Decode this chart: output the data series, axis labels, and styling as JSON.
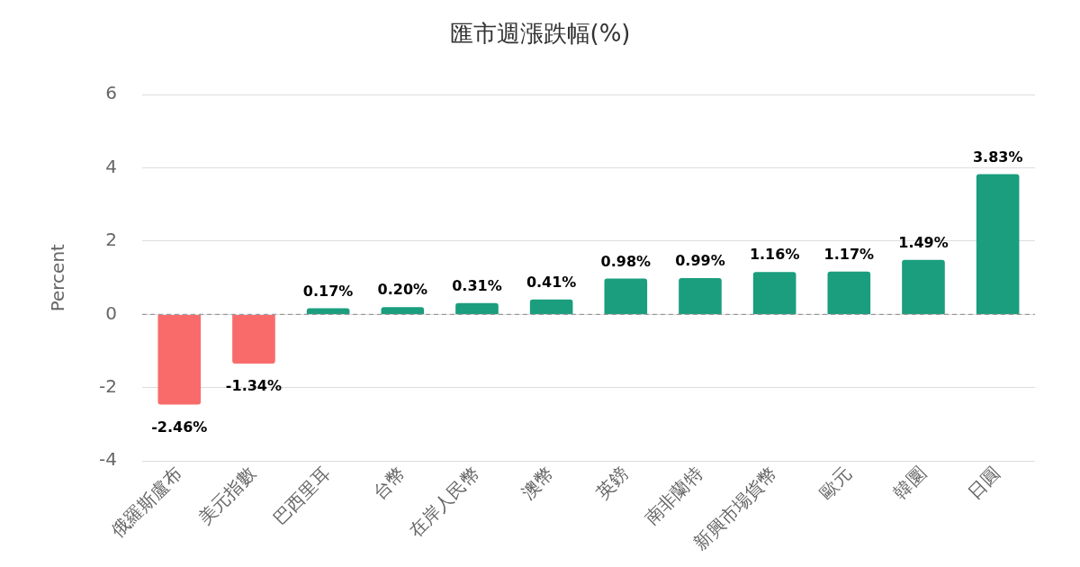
{
  "chart_data": {
    "type": "bar",
    "title": "匯市週漲跌幅(%)",
    "ylabel": "Percent",
    "categories": [
      "俄羅斯盧布",
      "美元指數",
      "巴西里耳",
      "台幣",
      "在岸人民幣",
      "澳幣",
      "英鎊",
      "南非蘭特",
      "新興市場貨幣",
      "歐元",
      "韓圜",
      "日圓"
    ],
    "values": [
      -2.46,
      -1.34,
      0.17,
      0.2,
      0.31,
      0.41,
      0.98,
      0.99,
      1.16,
      1.17,
      1.49,
      3.83
    ],
    "colors": [
      "#f96b6b",
      "#f96b6b",
      "#1a9e7e",
      "#1a9e7e",
      "#1a9e7e",
      "#1a9e7e",
      "#1a9e7e",
      "#1a9e7e",
      "#1a9e7e",
      "#1a9e7e",
      "#1a9e7e",
      "#1a9e7e"
    ],
    "value_labels": [
      "-2.46%",
      "-1.34%",
      "0.17%",
      "0.20%",
      "0.31%",
      "0.41%",
      "0.98%",
      "0.99%",
      "1.16%",
      "1.17%",
      "1.49%",
      "3.83%"
    ],
    "ylim": [
      -4,
      6
    ],
    "yticks": [
      -4,
      -2,
      0,
      2,
      4,
      6
    ],
    "grid": "y",
    "legend": false,
    "ref_lines": [
      {
        "axis": "y",
        "value": 0,
        "color": "#999999",
        "line_style": "dashed"
      }
    ]
  }
}
